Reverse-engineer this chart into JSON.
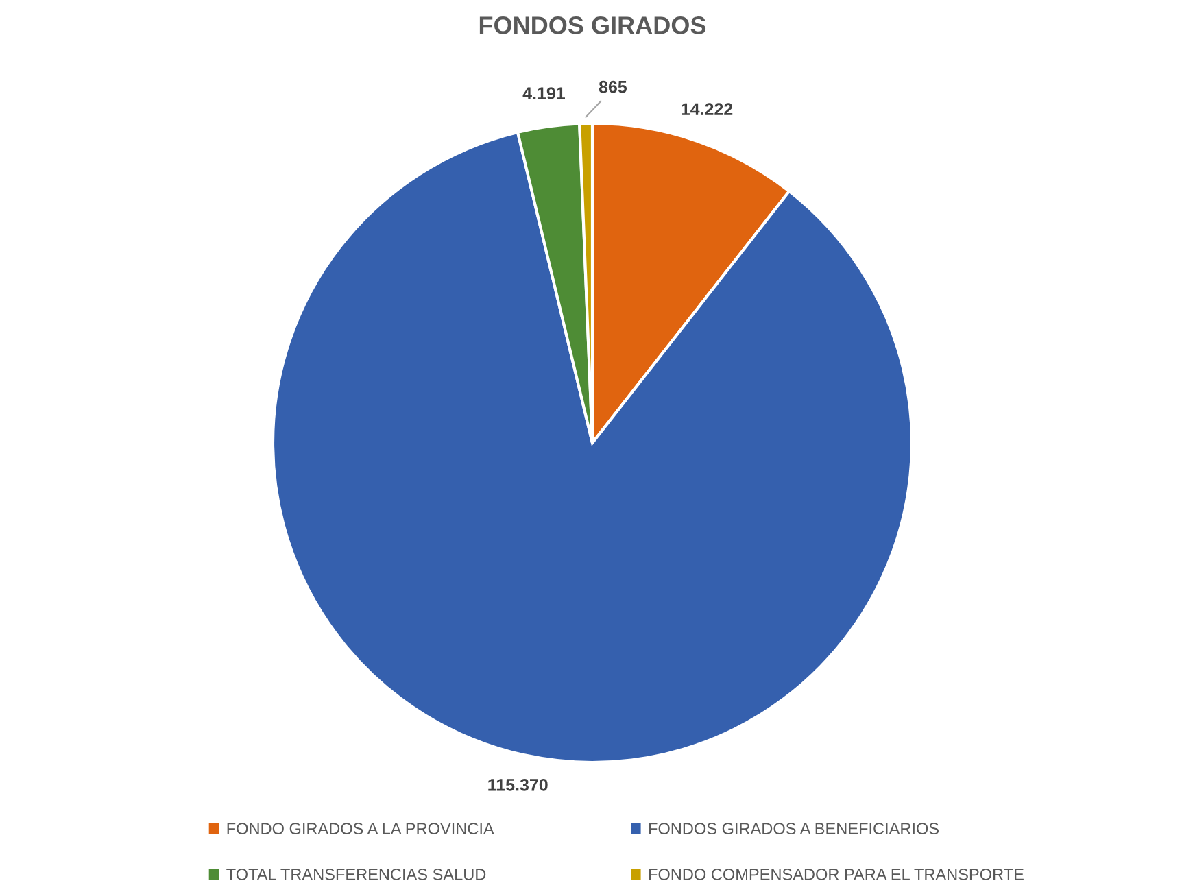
{
  "chart_data": {
    "type": "pie",
    "title": "FONDOS GIRADOS",
    "categories": [
      "FONDO GIRADOS A LA PROVINCIA",
      "FONDOS GIRADOS A BENEFICIARIOS",
      "TOTAL TRANSFERENCIAS SALUD",
      "FONDO COMPENSADOR PARA EL TRANSPORTE"
    ],
    "values": [
      14222,
      115370,
      4191,
      865
    ],
    "colors": [
      "#e0640f",
      "#3560ae",
      "#4e8c35",
      "#c8a000"
    ],
    "value_labels": [
      "14.222",
      "115.370",
      "4.191",
      "865"
    ],
    "legend": "bottom"
  }
}
